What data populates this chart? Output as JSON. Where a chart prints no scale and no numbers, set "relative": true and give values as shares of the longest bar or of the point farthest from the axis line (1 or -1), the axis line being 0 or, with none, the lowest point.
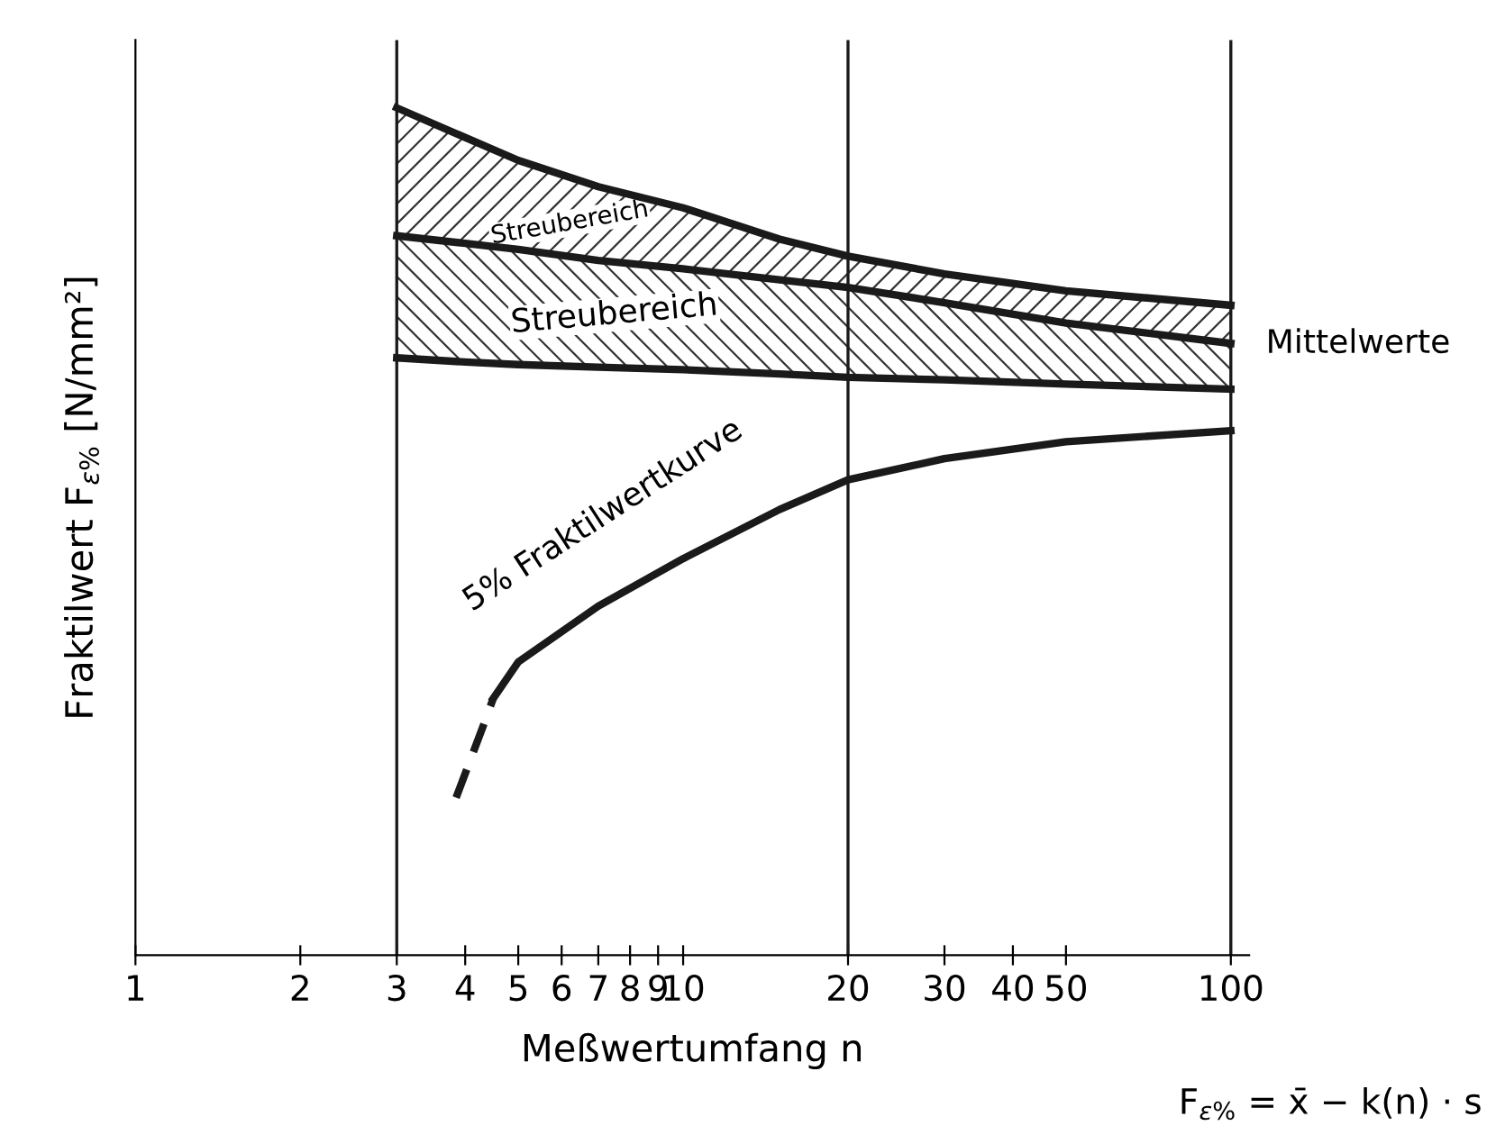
{
  "chart_data": {
    "type": "line",
    "relative": true,
    "log": "x",
    "xlabel": "Meßwertumfang n",
    "ylabel": "Fraktilwert F$_{ε%}$ [N/mm²]",
    "xlim": [
      1,
      108
    ],
    "xticks": [
      1,
      2,
      3,
      4,
      5,
      6,
      7,
      8,
      9,
      10,
      20,
      30,
      40,
      50,
      100
    ],
    "grid": false,
    "legend": false,
    "marker": "none",
    "series": [
      {
        "color": "#1a1a1a",
        "x": [
          3,
          4,
          5,
          7,
          10,
          15,
          20,
          30,
          50,
          100
        ],
        "values": [
          1.0,
          0.965,
          0.938,
          0.907,
          0.882,
          0.845,
          0.825,
          0.804,
          0.784,
          0.767
        ],
        "upper": [
          1.0,
          0.965,
          0.938,
          0.907,
          0.882,
          0.845,
          0.825,
          0.804,
          0.784,
          0.767
        ],
        "lower": [
          0.849,
          0.84,
          0.833,
          0.82,
          0.81,
          0.797,
          0.788,
          0.77,
          0.746,
          0.722
        ],
        "line_style": "solid"
      },
      {
        "color": "#1a1a1a",
        "x": [
          3,
          4,
          5,
          7,
          10,
          15,
          20,
          30,
          50,
          100
        ],
        "values": [
          0.849,
          0.84,
          0.833,
          0.82,
          0.81,
          0.797,
          0.788,
          0.77,
          0.746,
          0.722
        ],
        "upper": [
          0.849,
          0.84,
          0.833,
          0.82,
          0.81,
          0.797,
          0.788,
          0.77,
          0.746,
          0.722
        ],
        "lower": [
          0.705,
          0.7,
          0.697,
          0.694,
          0.691,
          0.686,
          0.682,
          0.679,
          0.674,
          0.668
        ],
        "line_style": "solid"
      },
      {
        "color": "#1a1a1a",
        "x": [
          3,
          4,
          5,
          7,
          10,
          15,
          20,
          30,
          50,
          100
        ],
        "values": [
          0.705,
          0.7,
          0.697,
          0.694,
          0.691,
          0.686,
          0.682,
          0.679,
          0.674,
          0.668
        ],
        "line_style": "solid"
      },
      {
        "color": "#1a1a1a",
        "x": [
          3.85,
          4.3,
          4.5
        ],
        "values": [
          0.186,
          0.268,
          0.303
        ],
        "line_style": "dashed"
      },
      {
        "color": "#1a1a1a",
        "x": [
          4.5,
          5,
          7,
          10,
          15,
          20,
          30,
          50,
          100
        ],
        "values": [
          0.303,
          0.346,
          0.412,
          0.468,
          0.526,
          0.561,
          0.586,
          0.606,
          0.619
        ],
        "line_style": "solid"
      }
    ],
    "ref_lines": [
      {
        "axis": "x",
        "value": 3,
        "color": "#1a1a1a"
      },
      {
        "axis": "x",
        "value": 20,
        "color": "#1a1a1a"
      },
      {
        "axis": "x",
        "value": 100,
        "color": "#1a1a1a"
      }
    ],
    "annotations": [
      "Streubereich",
      "Streubereich",
      "5% Fraktilwertkurve",
      "Mittelwerte",
      "F$_{ε%}$ = x̄ − k(n) · s"
    ]
  }
}
